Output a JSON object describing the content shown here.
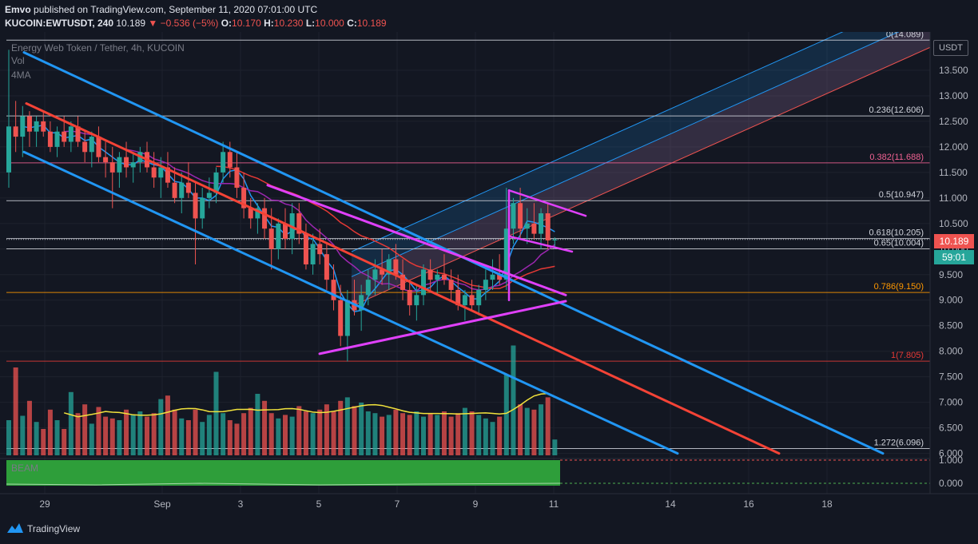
{
  "header": {
    "author": "Emvo",
    "published_text": "published on TradingView.com, September 11, 2020 07:01:00 UTC",
    "symbol": "KUCOIN:EWTUSDT, 240",
    "last": "10.189",
    "change": "−0.536 (−5%)",
    "o_label": "O:",
    "o_value": "10.170",
    "h_label": "H:",
    "h_value": "10.230",
    "l_label": "L:",
    "l_value": "10.000",
    "c_label": "C:",
    "c_value": "10.189"
  },
  "legend": {
    "title": "Energy Web Token / Tether, 4h, KUCOIN",
    "vol": "Vol",
    "ma": "4MA",
    "indicator": "BEAM"
  },
  "axis": {
    "currency": "USDT",
    "price_tag": "10.189",
    "timer": "59:01"
  },
  "footer": {
    "brand": "TradingView"
  },
  "colors": {
    "background": "#131722",
    "up": "#26a69a",
    "down": "#ef5350",
    "channel_blue": "#2196f3",
    "trend_red": "#f44336",
    "pattern_magenta": "#e040fb",
    "volume_ma": "#f2e33c",
    "indicator_green": "#2e9e3a"
  },
  "chart_data": {
    "type": "candlestick",
    "title": "Energy Web Token / Tether, 4h, KUCOIN",
    "x_ticks": [
      "29",
      "Sep",
      "3",
      "5",
      "7",
      "9",
      "11",
      "14",
      "16",
      "18"
    ],
    "y_ticks": [
      "13.500",
      "13.000",
      "12.500",
      "12.000",
      "11.500",
      "11.000",
      "10.500",
      "10.000",
      "9.500",
      "9.000",
      "8.500",
      "8.000",
      "7.500",
      "7.000",
      "6.500",
      "6.000"
    ],
    "y_range": [
      5.9,
      14.25
    ],
    "indicator_ticks": [
      "1.000",
      "0.000"
    ],
    "fib_levels": [
      {
        "label": "0(14.089)",
        "value": 14.089,
        "color": "#d1d4dc"
      },
      {
        "label": "0.236(12.606)",
        "value": 12.606,
        "color": "#d1d4dc"
      },
      {
        "label": "0.382(11.688)",
        "value": 11.688,
        "color": "#f06292"
      },
      {
        "label": "0.5(10.947)",
        "value": 10.947,
        "color": "#d1d4dc"
      },
      {
        "label": "0.618(10.205)",
        "value": 10.205,
        "color": "#d1d4dc"
      },
      {
        "label": "0.65(10.004)",
        "value": 10.004,
        "color": "#d1d4dc"
      },
      {
        "label": "0.786(9.150)",
        "value": 9.15,
        "color": "#ff9800"
      },
      {
        "label": "1(7.805)",
        "value": 7.805,
        "color": "#e53935"
      },
      {
        "label": "1.272(6.096)",
        "value": 6.096,
        "color": "#d1d4dc"
      }
    ],
    "candles": [
      [
        11.5,
        13.9,
        11.2,
        12.4
      ],
      [
        12.4,
        12.9,
        11.9,
        12.2
      ],
      [
        12.2,
        12.8,
        11.8,
        12.6
      ],
      [
        12.6,
        12.7,
        12.0,
        12.3
      ],
      [
        12.3,
        12.6,
        12.0,
        12.5
      ],
      [
        12.5,
        12.7,
        12.2,
        12.3
      ],
      [
        12.3,
        12.5,
        11.9,
        12.0
      ],
      [
        12.0,
        12.4,
        11.8,
        12.3
      ],
      [
        12.3,
        12.6,
        12.0,
        12.1
      ],
      [
        12.1,
        12.5,
        11.9,
        12.4
      ],
      [
        12.4,
        12.6,
        12.0,
        12.1
      ],
      [
        12.1,
        12.3,
        11.7,
        11.9
      ],
      [
        11.9,
        12.3,
        11.6,
        12.2
      ],
      [
        12.2,
        12.4,
        11.7,
        11.8
      ],
      [
        11.8,
        12.1,
        11.4,
        11.7
      ],
      [
        11.7,
        12.0,
        10.8,
        11.5
      ],
      [
        11.5,
        11.9,
        11.2,
        11.8
      ],
      [
        11.8,
        12.1,
        11.4,
        11.6
      ],
      [
        11.6,
        11.9,
        11.3,
        11.7
      ],
      [
        11.7,
        12.0,
        11.5,
        11.9
      ],
      [
        11.9,
        12.1,
        11.5,
        11.6
      ],
      [
        11.6,
        11.9,
        11.2,
        11.4
      ],
      [
        11.4,
        11.8,
        11.0,
        11.6
      ],
      [
        11.6,
        11.9,
        11.2,
        11.3
      ],
      [
        11.3,
        11.6,
        10.9,
        11.0
      ],
      [
        11.0,
        11.5,
        10.7,
        11.3
      ],
      [
        11.3,
        11.7,
        11.0,
        11.1
      ],
      [
        11.1,
        11.3,
        9.7,
        10.6
      ],
      [
        10.6,
        11.2,
        10.4,
        11.0
      ],
      [
        11.0,
        11.4,
        10.8,
        11.1
      ],
      [
        11.1,
        11.6,
        10.9,
        11.5
      ],
      [
        11.5,
        12.1,
        11.3,
        11.9
      ],
      [
        11.9,
        12.1,
        11.4,
        11.6
      ],
      [
        11.6,
        11.9,
        11.0,
        11.2
      ],
      [
        11.2,
        11.5,
        10.6,
        10.8
      ],
      [
        10.8,
        11.0,
        10.4,
        10.6
      ],
      [
        10.6,
        10.9,
        10.3,
        10.8
      ],
      [
        10.8,
        11.0,
        10.2,
        10.4
      ],
      [
        10.4,
        10.8,
        9.6,
        10.0
      ],
      [
        10.0,
        10.6,
        9.8,
        10.5
      ],
      [
        10.5,
        10.8,
        10.0,
        10.2
      ],
      [
        10.2,
        10.9,
        9.9,
        10.7
      ],
      [
        10.7,
        10.9,
        10.1,
        10.3
      ],
      [
        10.3,
        10.5,
        9.6,
        9.7
      ],
      [
        9.7,
        10.3,
        9.5,
        10.1
      ],
      [
        10.1,
        10.4,
        9.7,
        9.9
      ],
      [
        9.9,
        10.1,
        9.2,
        9.4
      ],
      [
        9.4,
        9.7,
        8.8,
        9.0
      ],
      [
        9.0,
        9.3,
        8.1,
        8.3
      ],
      [
        8.3,
        9.2,
        7.8,
        9.0
      ],
      [
        9.0,
        9.4,
        8.7,
        8.8
      ],
      [
        8.8,
        9.3,
        8.4,
        9.1
      ],
      [
        9.1,
        9.6,
        8.9,
        9.4
      ],
      [
        9.4,
        9.8,
        9.1,
        9.6
      ],
      [
        9.6,
        10.0,
        9.3,
        9.5
      ],
      [
        9.5,
        9.9,
        9.2,
        9.8
      ],
      [
        9.8,
        10.1,
        9.4,
        9.5
      ],
      [
        9.5,
        9.8,
        9.0,
        9.2
      ],
      [
        9.2,
        9.4,
        8.7,
        8.9
      ],
      [
        8.9,
        9.3,
        8.6,
        9.1
      ],
      [
        9.1,
        9.7,
        8.9,
        9.6
      ],
      [
        9.6,
        9.8,
        9.2,
        9.4
      ],
      [
        9.4,
        9.6,
        9.1,
        9.5
      ],
      [
        9.5,
        9.9,
        9.3,
        9.4
      ],
      [
        9.4,
        9.6,
        9.0,
        9.2
      ],
      [
        9.2,
        9.5,
        8.8,
        8.9
      ],
      [
        8.9,
        9.2,
        8.6,
        9.1
      ],
      [
        9.1,
        9.4,
        8.8,
        8.9
      ],
      [
        8.9,
        9.3,
        8.7,
        9.2
      ],
      [
        9.2,
        9.6,
        9.0,
        9.4
      ],
      [
        9.4,
        9.8,
        9.2,
        9.5
      ],
      [
        9.5,
        9.9,
        9.3,
        9.4
      ],
      [
        9.4,
        11.2,
        9.2,
        10.4
      ],
      [
        10.4,
        11.0,
        10.1,
        10.9
      ],
      [
        10.9,
        11.2,
        10.2,
        10.4
      ],
      [
        10.4,
        10.8,
        10.1,
        10.5
      ],
      [
        10.5,
        10.9,
        10.2,
        10.3
      ],
      [
        10.3,
        10.8,
        10.0,
        10.7
      ],
      [
        10.7,
        10.9,
        10.0,
        10.17
      ],
      [
        10.17,
        10.23,
        10.0,
        10.189
      ]
    ],
    "volume": [
      0.4,
      1.0,
      0.45,
      0.62,
      0.38,
      0.3,
      0.52,
      0.4,
      0.3,
      0.72,
      0.48,
      0.58,
      0.36,
      0.55,
      0.44,
      0.42,
      0.4,
      0.52,
      0.46,
      0.5,
      0.44,
      0.48,
      0.64,
      0.68,
      0.52,
      0.42,
      0.4,
      0.52,
      0.38,
      0.46,
      0.95,
      0.48,
      0.4,
      0.36,
      0.48,
      0.54,
      0.7,
      0.62,
      0.48,
      0.42,
      0.46,
      0.44,
      0.56,
      0.5,
      0.48,
      0.52,
      0.58,
      0.5,
      0.62,
      0.66,
      0.56,
      0.6,
      0.5,
      0.48,
      0.44,
      0.46,
      0.52,
      0.48,
      0.46,
      0.5,
      0.44,
      0.48,
      0.46,
      0.5,
      0.44,
      0.48,
      0.54,
      0.5,
      0.46,
      0.42,
      0.38,
      0.44,
      0.92,
      1.25,
      0.58,
      0.54,
      0.52,
      0.58,
      0.66,
      0.18
    ]
  }
}
